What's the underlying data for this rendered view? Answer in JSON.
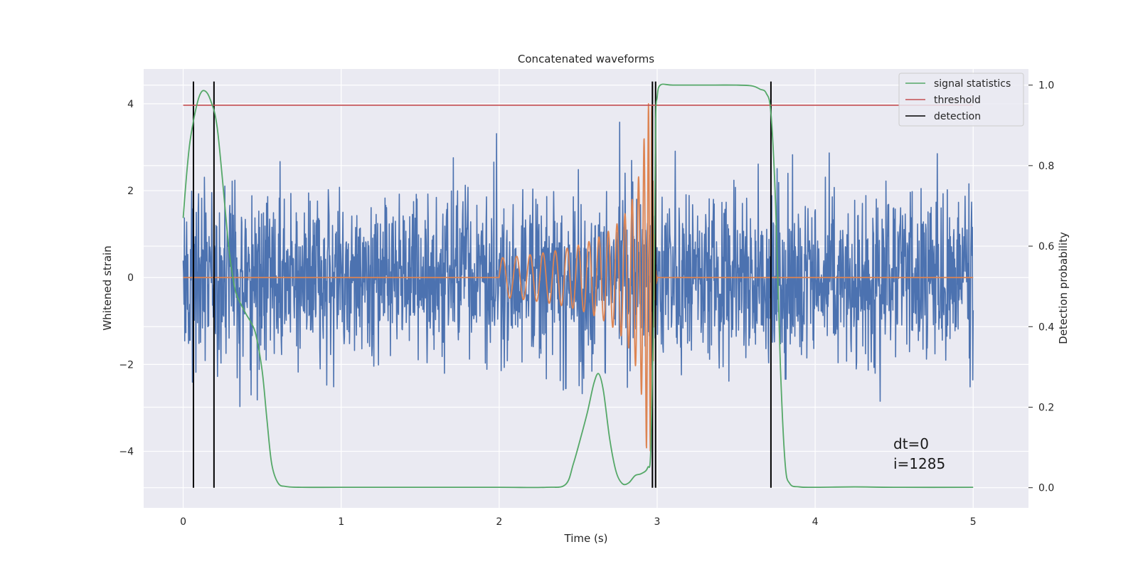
{
  "chart_data": {
    "type": "line",
    "title": "Concatenated waveforms",
    "xlabel": "Time (s)",
    "ylabel": "Whitened strain",
    "y2label": "Detection probability",
    "xlim": [
      -0.25,
      5.35
    ],
    "ylim": [
      -5.3,
      4.8
    ],
    "y2lim": [
      -0.05,
      1.04
    ],
    "xticks": [
      0,
      1,
      2,
      3,
      4,
      5
    ],
    "xtick_labels": [
      "0",
      "1",
      "2",
      "3",
      "4",
      "5"
    ],
    "yticks": [
      -4,
      -2,
      0,
      2,
      4
    ],
    "ytick_labels": [
      "−4",
      "−2",
      "0",
      "2",
      "4"
    ],
    "y2ticks": [
      0,
      0.2,
      0.4,
      0.6,
      0.8,
      1.0
    ],
    "y2tick_labels": [
      "0.0",
      "0.2",
      "0.4",
      "0.6",
      "0.8",
      "1.0"
    ],
    "grid": true,
    "legend_position": "top-right",
    "annotations": [
      "dt=0",
      "i=1285"
    ],
    "series": [
      {
        "kind": "noise",
        "axis": "left",
        "color": "#4c72b0",
        "x_range": [
          0,
          5
        ],
        "sigma": 1.0,
        "samples": 2048
      },
      {
        "kind": "chirp",
        "axis": "left",
        "color": "#dd8452",
        "x_range": [
          0,
          5
        ],
        "start": 2.0,
        "merger": 2.97,
        "ringdown_end": 3.0,
        "peak_amplitude": 4.0
      },
      {
        "name": "signal statistics",
        "axis": "right",
        "color": "#55a868",
        "x": [
          0.0,
          0.02,
          0.04,
          0.06,
          0.08,
          0.1,
          0.12,
          0.14,
          0.16,
          0.18,
          0.2,
          0.22,
          0.25,
          0.28,
          0.3,
          0.33,
          0.36,
          0.4,
          0.43,
          0.46,
          0.5,
          0.53,
          0.56,
          0.6,
          0.65,
          0.75,
          1.0,
          1.5,
          2.0,
          2.3,
          2.42,
          2.47,
          2.52,
          2.56,
          2.6,
          2.63,
          2.66,
          2.7,
          2.74,
          2.78,
          2.82,
          2.86,
          2.9,
          2.94,
          2.96,
          2.98,
          2.99,
          3.0,
          3.02,
          3.1,
          3.3,
          3.5,
          3.6,
          3.65,
          3.69,
          3.72,
          3.75,
          3.78,
          3.81,
          3.84,
          3.9,
          4.0,
          4.25,
          4.5,
          5.0
        ],
        "y": [
          0.67,
          0.77,
          0.85,
          0.9,
          0.94,
          0.97,
          0.985,
          0.985,
          0.975,
          0.955,
          0.93,
          0.88,
          0.76,
          0.63,
          0.56,
          0.49,
          0.46,
          0.43,
          0.41,
          0.38,
          0.29,
          0.17,
          0.06,
          0.012,
          0.003,
          0.001,
          0.001,
          0.001,
          0.001,
          0.001,
          0.008,
          0.06,
          0.13,
          0.19,
          0.26,
          0.283,
          0.24,
          0.12,
          0.04,
          0.01,
          0.012,
          0.03,
          0.035,
          0.05,
          0.1,
          0.5,
          0.9,
          0.97,
          1.0,
          1.0,
          1.0,
          1.0,
          0.998,
          0.99,
          0.98,
          0.93,
          0.7,
          0.3,
          0.06,
          0.01,
          0.002,
          0.001,
          0.002,
          0.001,
          0.001
        ]
      },
      {
        "name": "threshold",
        "axis": "right",
        "color": "#c44e52",
        "x": [
          0,
          5
        ],
        "y": [
          0.95,
          0.95
        ]
      }
    ],
    "detections": {
      "name": "detection",
      "color": "#000000",
      "x": [
        0.065,
        0.195,
        2.97,
        2.99,
        3.72
      ]
    }
  }
}
